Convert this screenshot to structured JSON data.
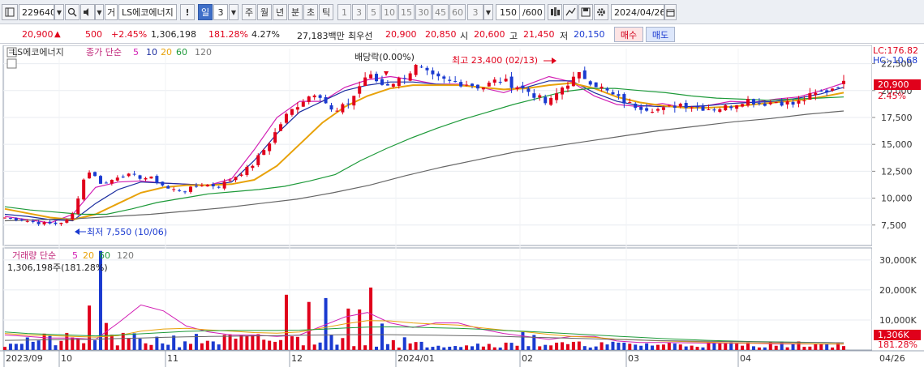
{
  "toolbar": {
    "code": "229640",
    "stock_type": "거",
    "stock_name": "LS에코에너지",
    "info_mark": "!",
    "periods": [
      "일",
      "3",
      "주",
      "월",
      "년",
      "분",
      "초",
      "틱"
    ],
    "selected_period": "일",
    "intervals": [
      "1",
      "3",
      "5",
      "10",
      "15",
      "30",
      "45",
      "60"
    ],
    "interval_value": "3",
    "count": "150",
    "count_total": "/600",
    "date": "2024/04/26"
  },
  "quote": {
    "price": "20,900",
    "change_arrow": "▲",
    "change": "500",
    "change_rate": "+2.45%",
    "volume": "1,306,198",
    "volume_rate": "181.28%",
    "turnover_pct": "4.27%",
    "amount": "27,183백만",
    "best_bid_label": "최우선",
    "ask": "20,900",
    "bid": "20,850",
    "open_label": "시",
    "open": "20,600",
    "high_label": "고",
    "high": "21,450",
    "low_label": "저",
    "low": "20,150",
    "buy_button": "매수",
    "sell_button": "매도"
  },
  "price_panel": {
    "title": "LS에코에너지",
    "indicator_label": "종가 단순",
    "ma_periods": [
      "5",
      "10",
      "20",
      "60",
      "120"
    ],
    "ma_colors": [
      "#d21fb4",
      "#1c2ea0",
      "#e8a20a",
      "#1e9a3a",
      "#666666"
    ],
    "lc_label": "LC:176.82",
    "hc_label": "HC:-10.68",
    "current_price_tag": "20,900",
    "current_change_tag": "2.45%",
    "annotation_dividend": "배당락(0.00%)",
    "annotation_high": "최고 23,400 (02/13)",
    "annotation_low": "최저 7,550 (10/06)"
  },
  "volume_panel": {
    "title": "거래량 단순",
    "ma_periods": [
      "5",
      "20",
      "60",
      "120"
    ],
    "ma_colors": [
      "#d21fb4",
      "#e8a20a",
      "#1e9a3a",
      "#666666"
    ],
    "summary": "1,306,198주(181.28%)",
    "current_volume_tag": "1,306K",
    "current_rate_tag": "181.28%"
  },
  "x_axis": {
    "labels": [
      "2023/09",
      "10",
      "11",
      "12",
      "2024/01",
      "02",
      "03",
      "04"
    ],
    "last_label": "04/26"
  },
  "chart_data": [
    {
      "type": "candlestick",
      "title": "LS에코에너지",
      "x": [
        "2023/09",
        "10",
        "11",
        "12",
        "2024/01",
        "02",
        "03",
        "04",
        "04/26"
      ],
      "y_ticks": [
        7500,
        10000,
        12500,
        15000,
        17500,
        20000,
        22500
      ],
      "ylim": [
        5600,
        24200
      ],
      "high": {
        "value": 23400,
        "date": "02/13"
      },
      "low": {
        "value": 7550,
        "date": "10/06"
      },
      "last": {
        "close": 20900,
        "open": 20600,
        "high": 21450,
        "low": 20150,
        "change_pct": 2.45
      },
      "close_path": [
        8200,
        8000,
        7700,
        7600,
        8000,
        12700,
        11200,
        12200,
        12000,
        11800,
        10800,
        10700,
        11300,
        11100,
        12000,
        13000,
        15000,
        17500,
        19000,
        20000,
        17800,
        19000,
        21500,
        20500,
        21000,
        22200,
        21200,
        20800,
        20700,
        20300,
        21000,
        20500,
        19800,
        18700,
        20500,
        21500,
        20500,
        19500,
        18700,
        18400,
        18200,
        18800,
        18500,
        18300,
        18500,
        19200,
        18800,
        19000,
        18700,
        19500,
        20000,
        20900
      ],
      "ma_series": [
        {
          "name": "5",
          "values": [
            8300,
            8000,
            7700,
            8500,
            11000,
            11500,
            11600,
            11400,
            11300,
            11200,
            11800,
            14500,
            17500,
            19000,
            19000,
            20300,
            21000,
            21300,
            21000,
            20600,
            20600,
            20300,
            19800,
            20500,
            21300,
            20800,
            19500,
            18700,
            18500,
            18800,
            18400,
            18600,
            19000,
            18900,
            19200,
            19400,
            20000,
            20700
          ]
        },
        {
          "name": "10",
          "values": [
            8500,
            8300,
            8000,
            7900,
            9500,
            10800,
            11500,
            11400,
            11300,
            11200,
            11500,
            13500,
            16000,
            18000,
            19000,
            20000,
            20500,
            20800,
            20800,
            20600,
            20500,
            20300,
            20100,
            20300,
            20900,
            20900,
            19800,
            19000,
            18600,
            18500,
            18500,
            18600,
            18800,
            18900,
            19000,
            19300,
            19700,
            20300
          ]
        },
        {
          "name": "20",
          "values": [
            9000,
            8600,
            8200,
            8000,
            8500,
            9500,
            10500,
            11000,
            11200,
            11200,
            11300,
            11700,
            13000,
            15000,
            17000,
            18500,
            19500,
            20200,
            20500,
            20500,
            20500,
            20300,
            20100,
            20200,
            20500,
            20700,
            20200,
            19400,
            18900,
            18600,
            18400,
            18400,
            18500,
            18700,
            18900,
            19100,
            19400,
            19800
          ]
        },
        {
          "name": "60",
          "values": [
            9200,
            8900,
            8700,
            8500,
            8500,
            9000,
            9600,
            10000,
            10400,
            10600,
            10800,
            11100,
            11600,
            12200,
            13500,
            14600,
            15600,
            16500,
            17300,
            18000,
            18700,
            19300,
            19900,
            20200,
            20200,
            20000,
            19800,
            19500,
            19300,
            19200,
            19100,
            19200,
            19300,
            19400
          ]
        },
        {
          "name": "120",
          "values": [
            7900,
            8000,
            8100,
            8300,
            8500,
            8800,
            9100,
            9500,
            9900,
            10500,
            11200,
            12100,
            12900,
            13600,
            14300,
            14800,
            15300,
            15800,
            16300,
            16700,
            17100,
            17400,
            17800,
            18100
          ]
        }
      ]
    },
    {
      "type": "bar",
      "title": "거래량",
      "y_ticks": [
        10000,
        20000,
        30000
      ],
      "y_tick_labels": [
        "10,000K",
        "20,000K",
        "30,000K"
      ],
      "ylim": [
        0,
        34000
      ],
      "unit": "K shares",
      "last_value": 1306,
      "spikes": [
        {
          "period": "10",
          "values": [
            14800,
            33000,
            9000
          ]
        },
        {
          "period": "12",
          "values": [
            18400,
            16000,
            17300,
            13800,
            13500
          ]
        },
        {
          "period": "2024/01",
          "values": [
            20800,
            8800
          ]
        },
        {
          "period": "02",
          "values": [
            6000,
            5000
          ]
        }
      ],
      "ma_series": [
        {
          "name": "5",
          "values": [
            5000,
            4500,
            4000,
            4000,
            3500,
            9000,
            15000,
            13000,
            8000,
            6000,
            5000,
            5000,
            4500,
            5000,
            8000,
            11000,
            12500,
            9000,
            7500,
            9000,
            9000,
            7000,
            5500,
            4500,
            3500,
            4500,
            4500,
            3000,
            2500,
            2500,
            2400,
            2300,
            2200,
            2200,
            2000,
            2000,
            2000,
            2000
          ]
        },
        {
          "name": "20",
          "values": [
            5500,
            5000,
            4800,
            4500,
            4300,
            4800,
            6300,
            7000,
            7200,
            6700,
            6300,
            5800,
            5600,
            6000,
            7300,
            8700,
            9800,
            9700,
            9000,
            8600,
            8300,
            7400,
            6600,
            6000,
            5200,
            4500,
            4200,
            3600,
            3300,
            3000,
            2800,
            2600,
            2400,
            2300,
            2200,
            2100,
            2000,
            2000
          ]
        },
        {
          "name": "60",
          "values": [
            6000,
            5500,
            5200,
            4900,
            4700,
            5000,
            5400,
            5800,
            6200,
            6400,
            6500,
            6500,
            6500,
            6600,
            6900,
            7300,
            7600,
            7700,
            7600,
            7400,
            7200,
            6900,
            6500,
            6200,
            5800,
            5400,
            5000,
            4600,
            4200,
            3800,
            3500,
            3200,
            3000,
            2800,
            2700,
            2600,
            2500,
            2400
          ]
        },
        {
          "name": "120",
          "values": [
            3200,
            3300,
            3400,
            3500,
            3600,
            3800,
            4000,
            4200,
            4400,
            4500,
            4600,
            4700,
            4800,
            4900,
            5000,
            5100,
            5100,
            5100,
            5000,
            4900,
            4800,
            4700,
            4500,
            4300,
            4100,
            3900,
            3700,
            3500,
            3300,
            3100,
            3000,
            2900,
            2800,
            2700,
            2600,
            2500,
            2500,
            2400
          ]
        }
      ]
    }
  ]
}
